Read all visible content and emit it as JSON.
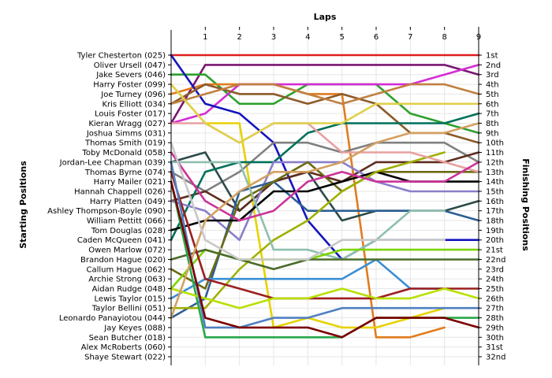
{
  "chart_data": {
    "type": "line",
    "title": "",
    "xlabel": "Laps",
    "ylabel_left": "Starting Positions",
    "ylabel_right": "Finishing Positions",
    "x": [
      0,
      1,
      2,
      3,
      4,
      5,
      6,
      7,
      8,
      9
    ],
    "x_tick_labels": [
      "1",
      "2",
      "3",
      "4",
      "5",
      "6",
      "7",
      "8",
      "9"
    ],
    "xlim": [
      0,
      9
    ],
    "ylim": [
      1,
      32
    ],
    "y_inverted": true,
    "grid": true,
    "starting_labels": [
      "Tyler Chesterton (025)",
      "Oliver Ursell (047)",
      "Jake Severs (046)",
      "Harry Foster (099)",
      "Joe Turney (096)",
      "Kris Elliott (034)",
      "Louis Foster (017)",
      "Kieran Wragg (027)",
      "Joshua Simms (031)",
      "Thomas Smith (019)",
      "Toby McDonald (058)",
      "Jordan-Lee Chapman (039)",
      "Thomas Byrne (074)",
      "Harry Mailer (021)",
      "Hannah Chappell (026)",
      "Harry Platten (049)",
      "Ashley Thompson-Boyle (090)",
      "William Pettitt (066)",
      "Tom Douglas (028)",
      "Caden McQueen (041)",
      "Owen Marlow (072)",
      "Brandon Hague (020)",
      "Callum Hague (062)",
      "Archie Strong (063)",
      "Aidan Rudge (048)",
      "Lewis Taylor (015)",
      "Taylor Bellini (051)",
      "Leonardo Panayiotou (044)",
      "Jay Keyes (088)",
      "Sean Butcher (018)",
      "Alex McRoberts (060)",
      "Shaye Stewart (022)"
    ],
    "finishing_labels": [
      "1st",
      "2nd",
      "3rd",
      "4th",
      "5th",
      "6th",
      "7th",
      "8th",
      "9th",
      "10th",
      "11th",
      "12th",
      "13th",
      "14th",
      "15th",
      "16th",
      "17th",
      "18th",
      "19th",
      "20th",
      "21st",
      "22nd",
      "23rd",
      "24th",
      "25th",
      "26th",
      "27th",
      "28th",
      "29th",
      "30th",
      "31st",
      "32nd"
    ],
    "series": [
      {
        "color": "#dc1e1e",
        "values": [
          1,
          1,
          1,
          1,
          1,
          1,
          1,
          1,
          1,
          1
        ]
      },
      {
        "color": "#7a1670",
        "values": [
          8,
          2,
          2,
          2,
          2,
          2,
          2,
          2,
          2,
          3
        ]
      },
      {
        "color": "#2ea02e",
        "values": [
          3,
          3,
          6,
          6,
          4,
          4,
          4,
          7,
          8,
          9
        ]
      },
      {
        "color": "#e07c1e",
        "values": [
          5,
          4,
          4,
          4,
          5,
          5,
          30,
          30,
          29,
          null
        ]
      },
      {
        "color": "#d42dd4",
        "values": [
          8,
          7,
          4,
          4,
          4,
          4,
          4,
          4,
          3,
          2
        ]
      },
      {
        "color": "#1515bf",
        "values": [
          1,
          6,
          7,
          10,
          18,
          22,
          20,
          20,
          20,
          20
        ]
      },
      {
        "color": "#e6d200",
        "values": [
          4,
          8,
          8,
          29,
          28,
          29,
          29,
          28,
          27,
          null
        ]
      },
      {
        "color": "#8c5a28",
        "values": [
          6,
          4,
          5,
          5,
          6,
          5,
          6,
          9,
          9,
          10
        ]
      },
      {
        "color": "#c08040",
        "values": [
          6,
          5,
          4,
          4,
          5,
          6,
          5,
          4,
          4,
          5
        ]
      },
      {
        "color": "#808080",
        "values": [
          13,
          15,
          13,
          10,
          10,
          11,
          10,
          10,
          10,
          12
        ]
      },
      {
        "color": "#2d4a4a",
        "values": [
          12,
          11,
          17,
          14,
          13,
          18,
          17,
          17,
          17,
          16
        ]
      },
      {
        "color": "#5e2d1e",
        "values": [
          16,
          15,
          17,
          14,
          13,
          14,
          12,
          12,
          12,
          11
        ]
      },
      {
        "color": "#00705a",
        "values": [
          20,
          13,
          12,
          12,
          9,
          8,
          8,
          8,
          8,
          7
        ]
      },
      {
        "color": "#8a7fc9",
        "values": [
          16,
          17,
          20,
          12,
          12,
          12,
          14,
          15,
          15,
          15
        ]
      },
      {
        "color": "#2e5f94",
        "values": [
          28,
          26,
          15,
          14,
          17,
          17,
          17,
          17,
          17,
          18
        ]
      },
      {
        "color": "#6b6b14",
        "values": [
          23,
          25,
          16,
          14,
          12,
          15,
          13,
          13,
          13,
          13
        ]
      },
      {
        "color": "#000000",
        "values": [
          19,
          18,
          18,
          15,
          15,
          14,
          13,
          14,
          14,
          14
        ]
      },
      {
        "color": "#a0b000",
        "values": [
          27,
          27,
          23,
          20,
          18,
          15,
          13,
          12,
          11,
          null
        ]
      },
      {
        "color": "#8fbfb0",
        "values": [
          12,
          12,
          12,
          21,
          21,
          22,
          20,
          17,
          17,
          null
        ]
      },
      {
        "color": "#e8a0a0",
        "values": [
          8,
          8,
          10,
          8,
          8,
          11,
          11,
          11,
          12,
          13
        ]
      },
      {
        "color": "#cc3399",
        "values": [
          11,
          16,
          18,
          17,
          14,
          13,
          14,
          14,
          14,
          12
        ]
      },
      {
        "color": "#3a8fd4",
        "values": [
          26,
          24,
          24,
          24,
          24,
          24,
          22,
          25,
          25,
          null
        ]
      },
      {
        "color": "#7cd400",
        "values": [
          25,
          21,
          22,
          22,
          22,
          21,
          21,
          21,
          21,
          21
        ]
      },
      {
        "color": "#4a6b2a",
        "values": [
          22,
          21,
          22,
          23,
          22,
          22,
          22,
          22,
          22,
          22
        ]
      },
      {
        "color": "#9b1f1f",
        "values": [
          13,
          24,
          25,
          26,
          26,
          26,
          26,
          25,
          25,
          25
        ]
      },
      {
        "color": "#2aa84a",
        "values": [
          14,
          30,
          30,
          30,
          30,
          30,
          28,
          28,
          28,
          28
        ]
      },
      {
        "color": "#b8e000",
        "values": [
          25,
          26,
          27,
          26,
          26,
          25,
          26,
          26,
          25,
          26
        ]
      },
      {
        "color": "#d4a060",
        "values": [
          28,
          18,
          15,
          13,
          13,
          12,
          10,
          9,
          9,
          8
        ]
      },
      {
        "color": "#5080c0",
        "values": [
          12,
          29,
          29,
          28,
          28,
          27,
          27,
          27,
          27,
          27
        ]
      },
      {
        "color": "#7a0000",
        "values": [
          14,
          28,
          29,
          29,
          29,
          30,
          28,
          28,
          28,
          29
        ]
      },
      {
        "color": "#c8c8c8",
        "values": [
          10,
          20,
          22,
          22,
          22,
          20,
          20,
          20,
          20,
          null
        ]
      },
      {
        "color": "#e0d04a",
        "values": [
          4,
          8,
          10,
          8,
          8,
          8,
          6,
          6,
          6,
          6
        ]
      }
    ]
  }
}
